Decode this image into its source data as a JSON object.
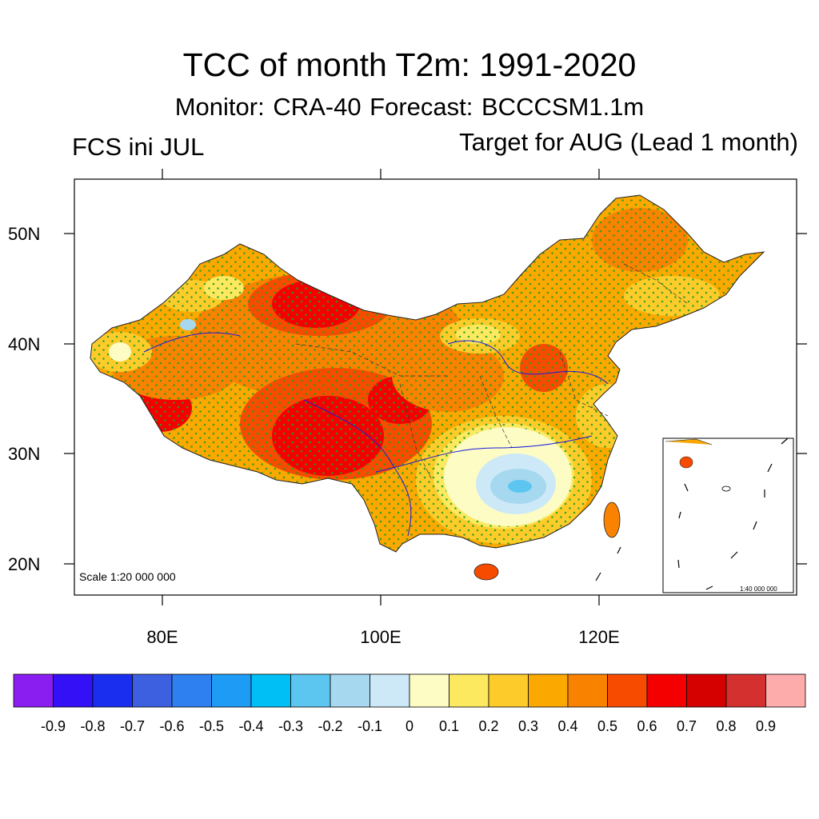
{
  "title": "TCC of month T2m: 1991-2020",
  "subtitle": "Monitor: CRA-40   Forecast: BCCCSM1.1m",
  "left_label": "FCS ini JUL",
  "right_label": "Target for AUG (Lead 1 month)",
  "scale_main": "Scale 1:20 000 000",
  "scale_inset": "1:40 000 000",
  "map": {
    "lat_ticks": [
      "50N",
      "40N",
      "30N",
      "20N"
    ],
    "lon_ticks": [
      "80E",
      "100E",
      "120E"
    ]
  },
  "colorbar": {
    "labels": [
      "-0.9",
      "-0.8",
      "-0.7",
      "-0.6",
      "-0.5",
      "-0.4",
      "-0.3",
      "-0.2",
      "-0.1",
      "0",
      "0.1",
      "0.2",
      "0.3",
      "0.4",
      "0.5",
      "0.6",
      "0.7",
      "0.8",
      "0.9"
    ],
    "colors": [
      "#8a1ef0",
      "#3310f5",
      "#1a2ef0",
      "#3d60e0",
      "#2e7ff0",
      "#1e9cf5",
      "#00bff5",
      "#5cc6f0",
      "#a6d8f0",
      "#cde9f7",
      "#fdfcc4",
      "#fde960",
      "#fdcc2a",
      "#fba800",
      "#f98300",
      "#f74c00",
      "#f50000",
      "#d50000",
      "#d43030",
      "#fdabab"
    ]
  },
  "shading_legend": {
    "stipple_color": "#22a020"
  }
}
